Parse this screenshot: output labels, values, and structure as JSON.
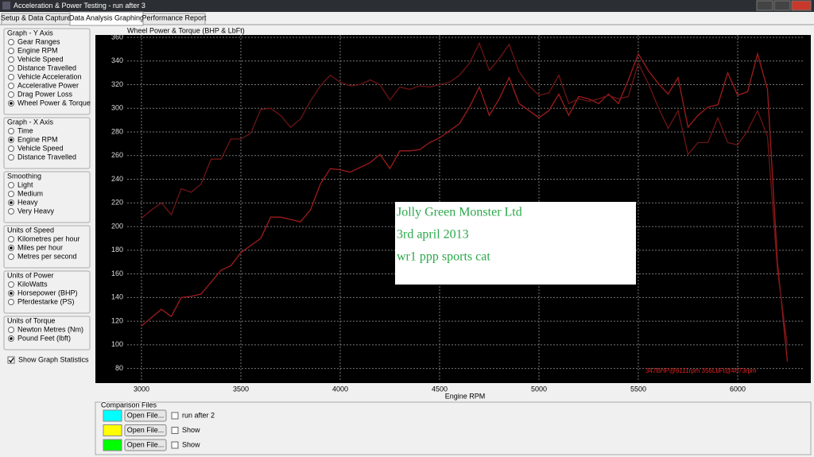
{
  "window": {
    "title": "Acceleration & Power Testing - run after 3"
  },
  "tabs": {
    "items": [
      "Setup & Data Capture",
      "Data Analysis Graphing",
      "Performance Report"
    ],
    "active": 1
  },
  "groups": [
    {
      "title": "Graph - Y Axis",
      "options": [
        "Gear Ranges",
        "Engine RPM",
        "Vehicle Speed",
        "Distance Travelled",
        "Vehicle Acceleration",
        "Accelerative Power",
        "Drag Power Loss",
        "Wheel Power & Torque"
      ],
      "selected": 7
    },
    {
      "title": "Graph - X Axis",
      "options": [
        "Time",
        "Engine RPM",
        "Vehicle Speed",
        "Distance Travelled"
      ],
      "selected": 1
    },
    {
      "title": "Smoothing",
      "options": [
        "Light",
        "Medium",
        "Heavy",
        "Very Heavy"
      ],
      "selected": 2
    },
    {
      "title": "Units of Speed",
      "options": [
        "Kilometres per hour",
        "Miles per hour",
        "Metres per second"
      ],
      "selected": 1
    },
    {
      "title": "Units of Power",
      "options": [
        "KiloWatts",
        "Horsepower (BHP)",
        "Pferdestarke (PS)"
      ],
      "selected": 1
    },
    {
      "title": "Units of Torque",
      "options": [
        "Newton Metres (Nm)",
        "Pound Feet (lbft)"
      ],
      "selected": 1
    }
  ],
  "show_graph_statistics": {
    "label": "Show Graph Statistics",
    "checked": true
  },
  "chart_data": {
    "type": "line",
    "title": "Wheel Power & Torque (BHP & LbFt)",
    "x_label": "Engine RPM",
    "x": [
      3000,
      3050,
      3100,
      3150,
      3200,
      3250,
      3300,
      3350,
      3400,
      3450,
      3500,
      3550,
      3600,
      3650,
      3700,
      3750,
      3800,
      3850,
      3900,
      3950,
      4000,
      4050,
      4100,
      4150,
      4200,
      4250,
      4300,
      4350,
      4400,
      4450,
      4500,
      4550,
      4600,
      4650,
      4700,
      4750,
      4800,
      4850,
      4900,
      4950,
      5000,
      5050,
      5100,
      5150,
      5200,
      5250,
      5300,
      5350,
      5400,
      5450,
      5500,
      5550,
      5600,
      5650,
      5700,
      5750,
      5800,
      5850,
      5900,
      5950,
      6000,
      6050,
      6100,
      6150,
      6200,
      6250
    ],
    "series": [
      {
        "color": "#a01c1c",
        "values": [
          116,
          123,
          130,
          124,
          140,
          141,
          143,
          153,
          163,
          167,
          178,
          184,
          190,
          208,
          208,
          206,
          204,
          214,
          236,
          249,
          248,
          246,
          250,
          254,
          261,
          249,
          264,
          264,
          265,
          271,
          275,
          281,
          287,
          301,
          318,
          294,
          308,
          326,
          304,
          298,
          292,
          298,
          312,
          294,
          310,
          308,
          304,
          312,
          304,
          324,
          346,
          332,
          321,
          312,
          326,
          284,
          294,
          301,
          303,
          330,
          311,
          314,
          346,
          316,
          170,
          86
        ]
      },
      {
        "color": "#6e1414",
        "values": [
          207,
          214,
          220,
          210,
          232,
          229,
          236,
          257,
          257,
          274,
          274,
          279,
          299,
          300,
          294,
          284,
          291,
          306,
          319,
          328,
          322,
          319,
          320,
          324,
          320,
          307,
          318,
          316,
          319,
          318,
          320,
          322,
          328,
          338,
          355,
          332,
          342,
          354,
          331,
          319,
          311,
          313,
          328,
          304,
          308,
          306,
          308,
          311,
          308,
          310,
          338,
          321,
          301,
          283,
          298,
          261,
          271,
          271,
          292,
          271,
          269,
          281,
          298,
          276,
          163,
          100
        ]
      }
    ],
    "xlim": [
      2928,
      6336
    ],
    "ylim": [
      69,
      362
    ],
    "xticks": [
      3000,
      3500,
      4000,
      4500,
      5000,
      5500,
      6000
    ],
    "yticks": [
      80,
      100,
      120,
      140,
      160,
      180,
      200,
      220,
      240,
      260,
      280,
      300,
      320,
      340,
      360
    ],
    "grid": true,
    "annotation": "347BHP@6111rpm 356LbFt@4673rpm",
    "text_box": [
      "Jolly Green Monster Ltd",
      "3rd april 2013",
      "wr1 ppp sports cat"
    ]
  },
  "comparison": {
    "title": "Comparison Files",
    "rows": [
      {
        "color": "#00ffff",
        "button": "Open File...",
        "label": "run after 2"
      },
      {
        "color": "#ffff00",
        "button": "Open File...",
        "label": "Show"
      },
      {
        "color": "#00ff00",
        "button": "Open File...",
        "label": "Show"
      }
    ]
  }
}
